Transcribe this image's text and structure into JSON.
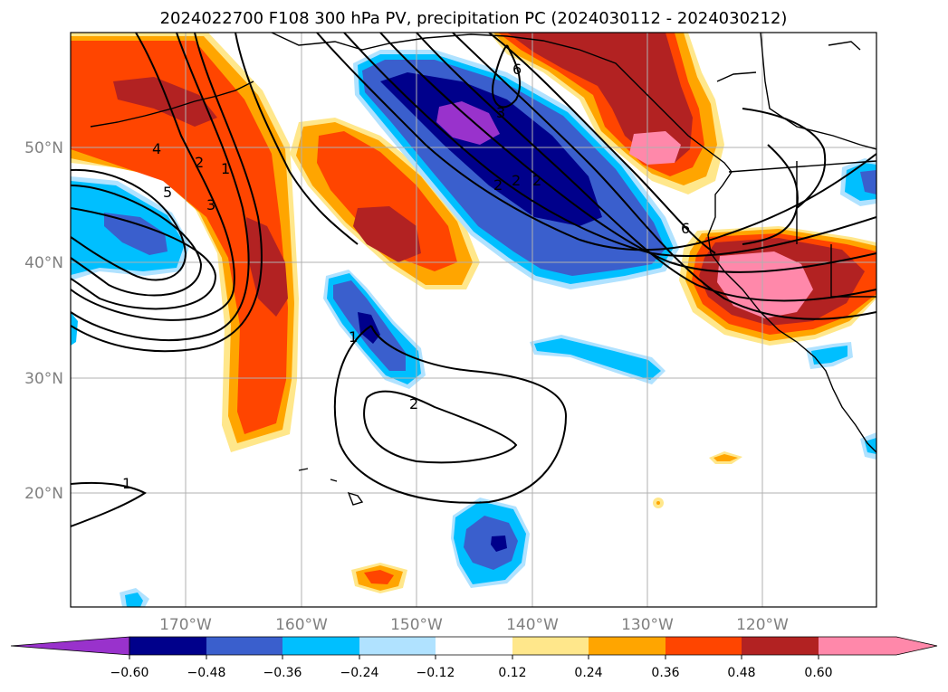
{
  "map": {
    "title": "2024022700 F108 300 hPa PV, precipitation PC (2024030112 - 2024030212)",
    "lat_labels": [
      "50°N",
      "40°N",
      "30°N",
      "20°N"
    ],
    "lon_labels": [
      "170°W",
      "160°W",
      "150°W",
      "140°W",
      "130°W",
      "120°W"
    ],
    "contour_labels": [
      "1",
      "2",
      "3",
      "4",
      "5",
      "6",
      "7",
      "2",
      "1",
      "2",
      "6"
    ],
    "colorbar": {
      "ticks": [
        "−0.60",
        "−0.48",
        "−0.36",
        "−0.24",
        "−0.12",
        "0.12",
        "0.24",
        "0.36",
        "0.48",
        "0.60"
      ],
      "colors": [
        "#9932cc",
        "#00008b",
        "#3a5fcd",
        "#00bfff",
        "#b0e2ff",
        "#ffffff",
        "#ffe78b",
        "#ffa500",
        "#ff4500",
        "#b22222",
        "#ff88aa"
      ]
    }
  }
}
